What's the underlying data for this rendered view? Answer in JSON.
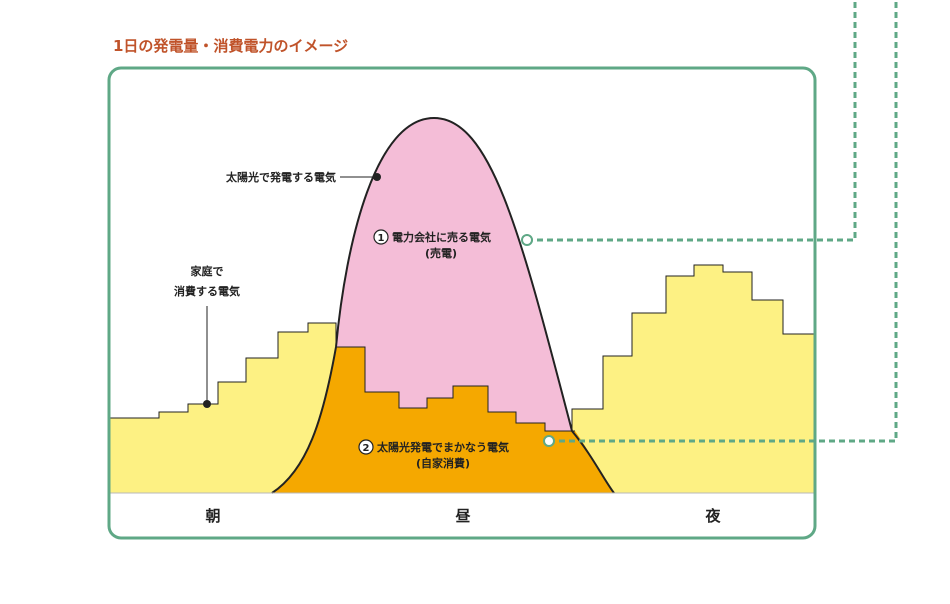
{
  "title": "1日の発電量・消費電力のイメージ",
  "labels": {
    "solar_generation": "太陽光で発電する電気",
    "household_line1": "家庭で",
    "household_line2": "消費する電気"
  },
  "callouts": {
    "sell": {
      "number": "1",
      "text": "電力会社に売る電気",
      "sub": "(売電)"
    },
    "self": {
      "number": "2",
      "text": "太陽光発電でまかなう電気",
      "sub": "(自家消費)"
    }
  },
  "time_of_day": {
    "morning": "朝",
    "noon": "昼",
    "night": "夜"
  },
  "colors": {
    "title": "#c0532a",
    "frame": "#5fa886",
    "consumption": "#fdf183",
    "sold": "#f4bdd7",
    "self_consumption": "#f5a800",
    "dashed_line": "#5fa886",
    "outline": "#222222"
  }
}
